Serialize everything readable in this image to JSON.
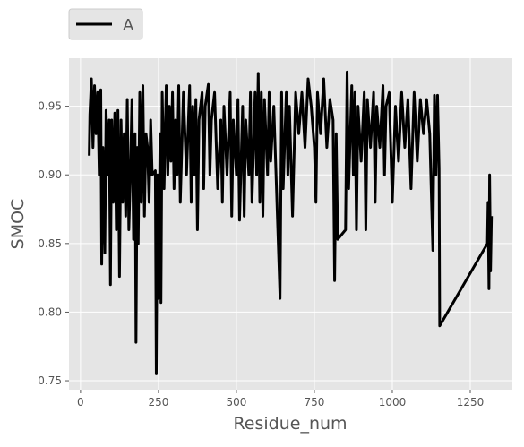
{
  "chart_data": {
    "type": "line",
    "xlabel": "Residue_num",
    "ylabel": "SMOC",
    "xlim": [
      -37,
      1385
    ],
    "ylim": [
      0.7435,
      0.985
    ],
    "xticks": [
      0,
      250,
      500,
      750,
      1000,
      1250
    ],
    "yticks": [
      0.75,
      {
        "value": 0.8,
        "label": "0.80"
      },
      0.85,
      {
        "value": 0.9,
        "label": "0.90"
      },
      0.95
    ],
    "grid": true,
    "legend": "top-left",
    "series": [
      {
        "name": "A",
        "color": "#000000",
        "x": [
          28,
          30,
          35,
          40,
          45,
          50,
          55,
          60,
          65,
          68,
          72,
          78,
          82,
          88,
          92,
          96,
          100,
          105,
          110,
          115,
          120,
          125,
          130,
          135,
          140,
          145,
          150,
          155,
          160,
          165,
          170,
          175,
          178,
          182,
          185,
          190,
          195,
          200,
          205,
          210,
          215,
          220,
          225,
          230,
          240,
          243,
          247,
          250,
          255,
          258,
          262,
          268,
          275,
          280,
          285,
          290,
          295,
          300,
          305,
          310,
          315,
          320,
          330,
          340,
          350,
          355,
          360,
          365,
          370,
          375,
          380,
          390,
          395,
          400,
          410,
          415,
          420,
          430,
          440,
          450,
          455,
          460,
          470,
          480,
          485,
          490,
          500,
          505,
          510,
          520,
          525,
          530,
          540,
          545,
          550,
          560,
          565,
          570,
          575,
          580,
          585,
          590,
          600,
          605,
          610,
          620,
          640,
          645,
          650,
          660,
          665,
          670,
          680,
          690,
          700,
          710,
          720,
          730,
          740,
          750,
          755,
          760,
          770,
          780,
          790,
          800,
          810,
          815,
          820,
          825,
          850,
          855,
          860,
          870,
          875,
          880,
          885,
          890,
          900,
          910,
          915,
          920,
          930,
          940,
          945,
          950,
          960,
          970,
          975,
          980,
          990,
          1000,
          1010,
          1020,
          1030,
          1040,
          1050,
          1060,
          1070,
          1080,
          1090,
          1100,
          1110,
          1120,
          1130,
          1135,
          1140,
          1145,
          1150,
          1152,
          1305,
          1307,
          1310,
          1312,
          1315,
          1318
        ],
        "values": [
          0.914,
          0.944,
          0.97,
          0.92,
          0.965,
          0.93,
          0.96,
          0.9,
          0.962,
          0.835,
          0.92,
          0.843,
          0.947,
          0.9,
          0.94,
          0.82,
          0.94,
          0.88,
          0.945,
          0.86,
          0.947,
          0.826,
          0.94,
          0.88,
          0.93,
          0.87,
          0.955,
          0.86,
          0.9,
          0.955,
          0.853,
          0.93,
          0.778,
          0.92,
          0.85,
          0.96,
          0.88,
          0.965,
          0.87,
          0.93,
          0.92,
          0.88,
          0.94,
          0.9,
          0.903,
          0.755,
          0.9,
          0.81,
          0.93,
          0.807,
          0.96,
          0.89,
          0.965,
          0.9,
          0.95,
          0.91,
          0.96,
          0.89,
          0.94,
          0.9,
          0.965,
          0.88,
          0.96,
          0.9,
          0.965,
          0.88,
          0.95,
          0.9,
          0.955,
          0.86,
          0.94,
          0.96,
          0.89,
          0.95,
          0.966,
          0.9,
          0.94,
          0.96,
          0.89,
          0.94,
          0.88,
          0.95,
          0.9,
          0.96,
          0.87,
          0.94,
          0.9,
          0.955,
          0.867,
          0.95,
          0.87,
          0.94,
          0.9,
          0.96,
          0.88,
          0.96,
          0.9,
          0.974,
          0.88,
          0.96,
          0.87,
          0.955,
          0.9,
          0.96,
          0.91,
          0.95,
          0.81,
          0.96,
          0.89,
          0.96,
          0.9,
          0.95,
          0.87,
          0.96,
          0.93,
          0.96,
          0.92,
          0.97,
          0.95,
          0.92,
          0.88,
          0.96,
          0.93,
          0.97,
          0.92,
          0.955,
          0.94,
          0.823,
          0.93,
          0.853,
          0.86,
          0.975,
          0.89,
          0.965,
          0.9,
          0.96,
          0.86,
          0.95,
          0.91,
          0.96,
          0.86,
          0.955,
          0.92,
          0.96,
          0.88,
          0.95,
          0.92,
          0.965,
          0.9,
          0.95,
          0.96,
          0.88,
          0.95,
          0.91,
          0.96,
          0.92,
          0.955,
          0.89,
          0.96,
          0.91,
          0.955,
          0.93,
          0.955,
          0.93,
          0.845,
          0.958,
          0.9,
          0.958,
          0.905,
          0.79,
          0.85,
          0.88,
          0.817,
          0.9,
          0.83,
          0.87
        ]
      }
    ]
  }
}
